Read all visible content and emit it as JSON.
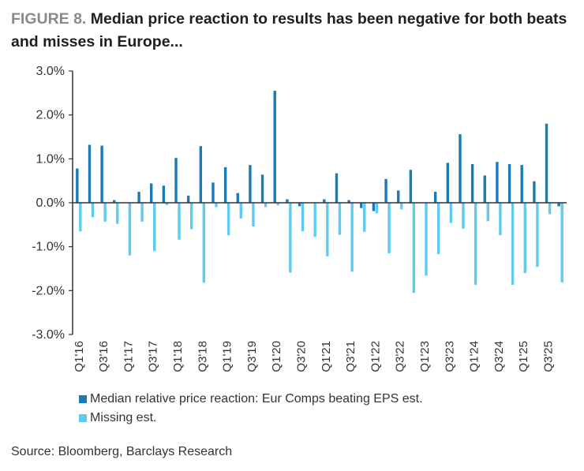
{
  "header": {
    "figure_label": "FIGURE 8.",
    "title": "Median price reaction to results has been negative for both beats and misses in Europe..."
  },
  "source": "Source: Bloomberg, Barclays Research",
  "colors": {
    "beat": "#1a7ab5",
    "miss": "#5fcbf0",
    "axis": "#333333",
    "text": "#333333"
  },
  "chart_data": {
    "type": "bar",
    "title": "Median price reaction to results has been negative for both beats and misses in Europe...",
    "xlabel": "",
    "ylabel": "",
    "ylim": [
      -3.0,
      3.0
    ],
    "yticks": [
      "3.0%",
      "2.0%",
      "1.0%",
      "0.0%",
      "-1.0%",
      "-2.0%",
      "-3.0%"
    ],
    "ytick_values": [
      3.0,
      2.0,
      1.0,
      0.0,
      -1.0,
      -2.0,
      -3.0
    ],
    "grid": false,
    "legend_position": "bottom-left",
    "categories": [
      "Q1'16",
      "Q2'16",
      "Q3'16",
      "Q4'16",
      "Q1'17",
      "Q2'17",
      "Q3'17",
      "Q4'17",
      "Q1'18",
      "Q2'18",
      "Q3'18",
      "Q4'18",
      "Q1'19",
      "Q2'19",
      "Q3'19",
      "Q4'19",
      "Q1'20",
      "Q2'20",
      "Q3'20",
      "Q4'20",
      "Q1'21",
      "Q2'21",
      "Q3'21",
      "Q4'21",
      "Q1'22",
      "Q2'22",
      "Q3'22",
      "Q4'22",
      "Q1'23",
      "Q2'23",
      "Q3'23",
      "Q4'23",
      "Q1'24",
      "Q2'24",
      "Q3'24",
      "Q4'24",
      "Q1'25",
      "Q2'25",
      "Q3'25",
      "Q4'25"
    ],
    "x_tick_labels": [
      "Q1'16",
      "Q3'16",
      "Q1'17",
      "Q3'17",
      "Q1'18",
      "Q3'18",
      "Q1'19",
      "Q3'19",
      "Q1'20",
      "Q3'20",
      "Q1'21",
      "Q3'21",
      "Q1'22",
      "Q3'22",
      "Q1'23",
      "Q3'23",
      "Q1'24",
      "Q3'24",
      "Q1'25",
      "Q3'25"
    ],
    "series": [
      {
        "name": "Median relative  price reaction: Eur Comps beating EPS est.",
        "values": [
          0.78,
          1.32,
          1.3,
          0.06,
          0.0,
          0.25,
          0.44,
          0.39,
          1.02,
          0.16,
          1.29,
          0.46,
          0.81,
          0.22,
          0.86,
          0.64,
          2.55,
          0.08,
          -0.08,
          0.0,
          0.08,
          0.67,
          0.06,
          -0.12,
          -0.19,
          0.54,
          0.28,
          0.75,
          0.0,
          0.25,
          0.91,
          1.56,
          0.88,
          0.62,
          0.93,
          0.88,
          0.86,
          0.49,
          1.8,
          -0.08
        ]
      },
      {
        "name": "Missing est.",
        "values": [
          -0.65,
          -0.33,
          -0.43,
          -0.48,
          -1.2,
          -0.43,
          -1.1,
          -0.05,
          -0.84,
          -0.6,
          -1.82,
          -0.1,
          -0.74,
          -0.36,
          -0.54,
          -0.1,
          -0.06,
          -1.59,
          -0.65,
          -0.78,
          -1.22,
          -0.73,
          -1.57,
          -0.66,
          -0.24,
          -1.15,
          -0.15,
          -2.05,
          -1.66,
          -1.17,
          -0.46,
          -0.59,
          -1.87,
          -0.42,
          -0.74,
          -1.87,
          -1.6,
          -1.46,
          -0.26,
          -1.81
        ]
      }
    ]
  }
}
